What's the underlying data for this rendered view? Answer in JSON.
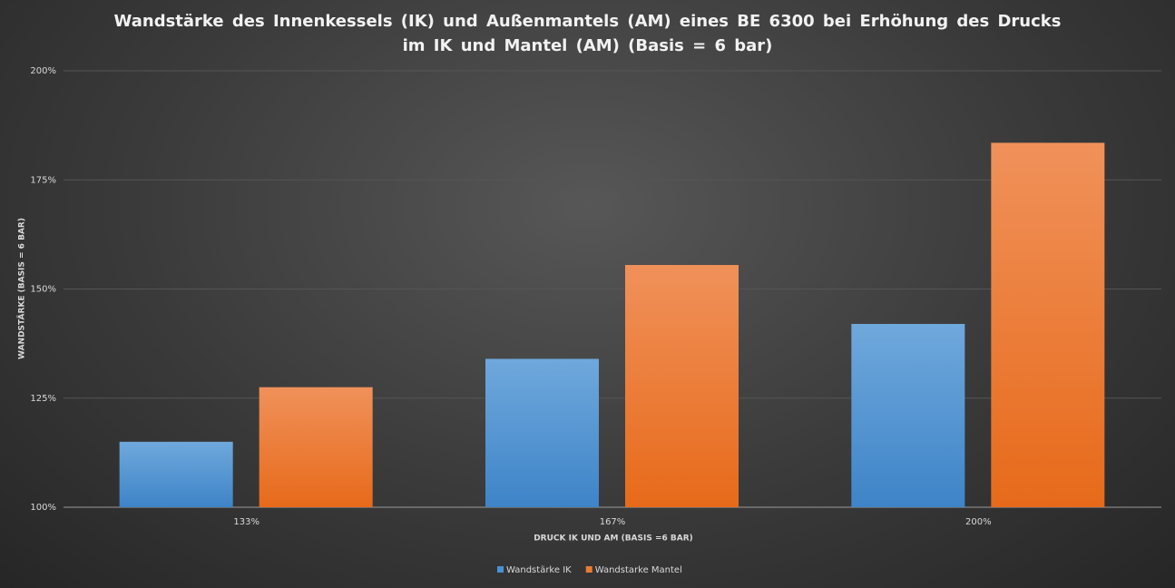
{
  "chart_data": {
    "type": "bar",
    "title": "Wandstärke  des Innenkessels (IK) und Außenmantels (AM) eines BE 6300 bei Erhöhung  des Drucks  im IK und Mantel (AM) (Basis = 6 bar)",
    "x_label": "DRUCK IK UND AM  (BASIS =6 BAR)",
    "y_label": "WANDSTÄRKE (BASIS = 6 BAR)",
    "categories": [
      "133%",
      "167%",
      "200%"
    ],
    "series": [
      {
        "name": "Wandstärke IK",
        "color": "#4a90d6",
        "values": [
          115,
          134,
          142
        ]
      },
      {
        "name": "Wandstarke Mantel",
        "color": "#ee7a2e",
        "values": [
          127.5,
          155.5,
          183.5
        ]
      }
    ],
    "ylim": [
      100,
      200
    ],
    "yticks": [
      {
        "value": 100,
        "label": "100%"
      },
      {
        "value": 125,
        "label": "125%"
      },
      {
        "value": 150,
        "label": "150%"
      },
      {
        "value": 175,
        "label": "175%"
      },
      {
        "value": 200,
        "label": "200%"
      }
    ],
    "grid": true,
    "legend": "bottom"
  }
}
